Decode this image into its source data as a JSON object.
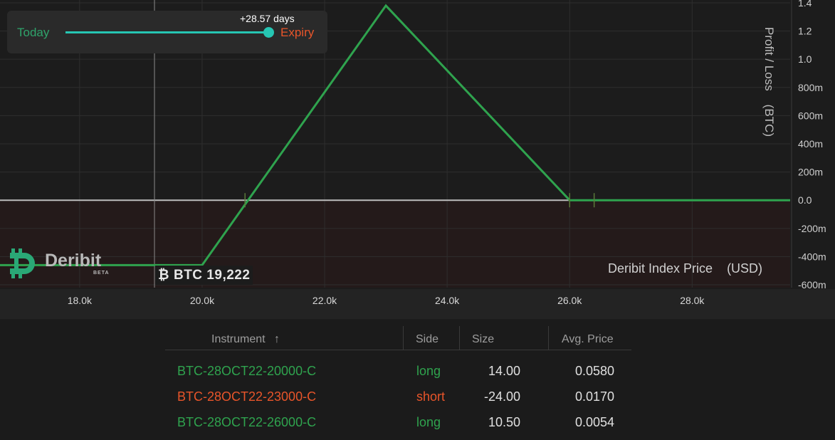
{
  "time_slider": {
    "start_label": "Today",
    "end_label": "Expiry",
    "offset_label": "+28.57 days",
    "position": 1.0
  },
  "index": {
    "symbol": "₿",
    "label": "BTC 19,222",
    "price": 19222
  },
  "logo": {
    "name": "Deribit",
    "badge": "BETA"
  },
  "colors": {
    "payoff_line": "#2fa34e",
    "long": "#2fa34e",
    "short": "#e8552a",
    "slider": "#26c6b3"
  },
  "chart_data": {
    "type": "line",
    "xlabel": "Deribit Index Price    (USD)",
    "ylabel": "Profit / Loss    (BTC)",
    "xlim": [
      16700,
      29600
    ],
    "ylim": [
      -620,
      1420
    ],
    "x_ticks": [
      {
        "value": 18000,
        "label": "18.0k"
      },
      {
        "value": 20000,
        "label": "20.0k"
      },
      {
        "value": 22000,
        "label": "22.0k"
      },
      {
        "value": 24000,
        "label": "24.0k"
      },
      {
        "value": 26000,
        "label": "26.0k"
      },
      {
        "value": 28000,
        "label": "28.0k"
      }
    ],
    "y_ticks": [
      {
        "value": 1400,
        "label": "1.4"
      },
      {
        "value": 1200,
        "label": "1.2"
      },
      {
        "value": 1000,
        "label": "1.0"
      },
      {
        "value": 800,
        "label": "800m"
      },
      {
        "value": 600,
        "label": "600m"
      },
      {
        "value": 400,
        "label": "400m"
      },
      {
        "value": 200,
        "label": "200m"
      },
      {
        "value": 0,
        "label": "0.0"
      },
      {
        "value": -200,
        "label": "-200m"
      },
      {
        "value": -400,
        "label": "-400m"
      },
      {
        "value": -600,
        "label": "-600m"
      }
    ],
    "series": [
      {
        "x": [
          16700,
          20000,
          23000,
          26000,
          29600
        ],
        "y": [
          -460,
          -460,
          1380,
          0,
          0
        ]
      }
    ],
    "breakeven_markers": [
      20700,
      26000,
      26400
    ],
    "grid": true
  },
  "table": {
    "headers": {
      "instrument": "Instrument",
      "sort_icon": "↑",
      "side": "Side",
      "size": "Size",
      "avg_price": "Avg. Price"
    },
    "rows": [
      {
        "instrument": "BTC-28OCT22-20000-C",
        "side": "long",
        "size": "14.00",
        "avg_price": "0.0580"
      },
      {
        "instrument": "BTC-28OCT22-23000-C",
        "side": "short",
        "size": "-24.00",
        "avg_price": "0.0170"
      },
      {
        "instrument": "BTC-28OCT22-26000-C",
        "side": "long",
        "size": "10.50",
        "avg_price": "0.0054"
      }
    ]
  }
}
